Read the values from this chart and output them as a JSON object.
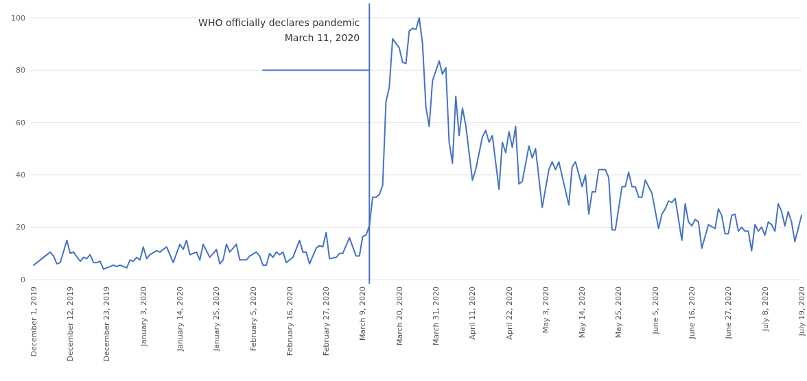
{
  "chart_data": {
    "type": "line",
    "x": [
      "2019-12-01",
      "2019-12-03",
      "2019-12-06",
      "2019-12-07",
      "2019-12-08",
      "2019-12-09",
      "2019-12-11",
      "2019-12-12",
      "2019-12-13",
      "2019-12-15",
      "2019-12-16",
      "2019-12-17",
      "2019-12-18",
      "2019-12-19",
      "2019-12-20",
      "2019-12-21",
      "2019-12-22",
      "2019-12-23",
      "2019-12-25",
      "2019-12-26",
      "2019-12-27",
      "2019-12-29",
      "2019-12-30",
      "2019-12-31",
      "2020-01-01",
      "2020-01-02",
      "2020-01-03",
      "2020-01-04",
      "2020-01-05",
      "2020-01-07",
      "2020-01-08",
      "2020-01-10",
      "2020-01-12",
      "2020-01-14",
      "2020-01-15",
      "2020-01-16",
      "2020-01-17",
      "2020-01-19",
      "2020-01-20",
      "2020-01-21",
      "2020-01-23",
      "2020-01-25",
      "2020-01-26",
      "2020-01-27",
      "2020-01-28",
      "2020-01-29",
      "2020-01-31",
      "2020-02-01",
      "2020-02-03",
      "2020-02-04",
      "2020-02-06",
      "2020-02-07",
      "2020-02-08",
      "2020-02-09",
      "2020-02-10",
      "2020-02-11",
      "2020-02-12",
      "2020-02-13",
      "2020-02-14",
      "2020-02-15",
      "2020-02-17",
      "2020-02-19",
      "2020-02-20",
      "2020-02-21",
      "2020-02-22",
      "2020-02-24",
      "2020-02-25",
      "2020-02-26",
      "2020-02-27",
      "2020-02-28",
      "2020-03-01",
      "2020-03-02",
      "2020-03-03",
      "2020-03-05",
      "2020-03-07",
      "2020-03-08",
      "2020-03-09",
      "2020-03-10",
      "2020-03-11",
      "2020-03-12",
      "2020-03-13",
      "2020-03-14",
      "2020-03-15",
      "2020-03-16",
      "2020-03-17",
      "2020-03-18",
      "2020-03-20",
      "2020-03-21",
      "2020-03-22",
      "2020-03-23",
      "2020-03-24",
      "2020-03-25",
      "2020-03-26",
      "2020-03-27",
      "2020-03-28",
      "2020-03-29",
      "2020-03-30",
      "2020-04-01",
      "2020-04-02",
      "2020-04-03",
      "2020-04-04",
      "2020-04-05",
      "2020-04-06",
      "2020-04-07",
      "2020-04-08",
      "2020-04-09",
      "2020-04-11",
      "2020-04-12",
      "2020-04-14",
      "2020-04-15",
      "2020-04-16",
      "2020-04-17",
      "2020-04-19",
      "2020-04-20",
      "2020-04-21",
      "2020-04-22",
      "2020-04-23",
      "2020-04-24",
      "2020-04-25",
      "2020-04-26",
      "2020-04-28",
      "2020-04-29",
      "2020-04-30",
      "2020-05-02",
      "2020-05-04",
      "2020-05-05",
      "2020-05-06",
      "2020-05-07",
      "2020-05-10",
      "2020-05-11",
      "2020-05-12",
      "2020-05-14",
      "2020-05-15",
      "2020-05-16",
      "2020-05-17",
      "2020-05-18",
      "2020-05-19",
      "2020-05-21",
      "2020-05-22",
      "2020-05-23",
      "2020-05-24",
      "2020-05-26",
      "2020-05-27",
      "2020-05-28",
      "2020-05-29",
      "2020-05-30",
      "2020-05-31",
      "2020-06-01",
      "2020-06-02",
      "2020-06-04",
      "2020-06-06",
      "2020-06-07",
      "2020-06-08",
      "2020-06-09",
      "2020-06-10",
      "2020-06-11",
      "2020-06-12",
      "2020-06-13",
      "2020-06-14",
      "2020-06-15",
      "2020-06-16",
      "2020-06-17",
      "2020-06-18",
      "2020-06-19",
      "2020-06-21",
      "2020-06-23",
      "2020-06-24",
      "2020-06-25",
      "2020-06-26",
      "2020-06-27",
      "2020-06-28",
      "2020-06-29",
      "2020-06-30",
      "2020-07-01",
      "2020-07-02",
      "2020-07-03",
      "2020-07-04",
      "2020-07-05",
      "2020-07-06",
      "2020-07-07",
      "2020-07-08",
      "2020-07-09",
      "2020-07-10",
      "2020-07-11",
      "2020-07-12",
      "2020-07-13",
      "2020-07-14",
      "2020-07-15",
      "2020-07-16",
      "2020-07-17",
      "2020-07-19"
    ],
    "series": [
      {
        "color": "#4472c4",
        "values": [
          5.5,
          7.5,
          10.5,
          9,
          6,
          6.5,
          15,
          10,
          10.5,
          7,
          8.5,
          8,
          9.5,
          6.5,
          6.5,
          7,
          4,
          4.5,
          5.5,
          5,
          5.5,
          4.5,
          7.5,
          7,
          8.5,
          7.5,
          12.5,
          8,
          9.5,
          11,
          10.5,
          12.5,
          6.5,
          13.5,
          11.5,
          15,
          9.5,
          10.5,
          7.5,
          13.5,
          8.5,
          11.5,
          6,
          7.5,
          13.5,
          10.5,
          13.5,
          7.5,
          7.5,
          9,
          10.5,
          9,
          5.5,
          5.5,
          10,
          8.5,
          10.5,
          9.5,
          10.5,
          6.5,
          8.5,
          15,
          10.5,
          10.5,
          6,
          12,
          13,
          12.5,
          18,
          8,
          8.5,
          10,
          10,
          16,
          9,
          9,
          16.5,
          17,
          20.5,
          31.5,
          31.5,
          32.5,
          36,
          68,
          73.5,
          92,
          88.5,
          83,
          82.5,
          95,
          96,
          95.5,
          100,
          90,
          66,
          58.5,
          76,
          83.5,
          78.5,
          81,
          52.5,
          44.5,
          70,
          55,
          65.5,
          59,
          38,
          42,
          54.5,
          57,
          52.5,
          55,
          34.5,
          52.5,
          48.5,
          56.5,
          50.5,
          58.5,
          36.5,
          37.5,
          51,
          46.5,
          50,
          27.5,
          42,
          45,
          42,
          45,
          28.5,
          43,
          45,
          35.5,
          40,
          25,
          33.5,
          33.5,
          42,
          42,
          39,
          19,
          19,
          35.5,
          35.5,
          41,
          35.5,
          35.5,
          31.5,
          31.5,
          38,
          33,
          19.5,
          25,
          27,
          30,
          29.5,
          31,
          23,
          15,
          29,
          22,
          20.5,
          23,
          22,
          12,
          21,
          19.5,
          27,
          24.5,
          17.5,
          17.5,
          24.5,
          25,
          18.5,
          20,
          18.5,
          18.5,
          11,
          21,
          18.5,
          20,
          17,
          22,
          21,
          18.5,
          29,
          26,
          20.5,
          26,
          22,
          14.5,
          24.5
        ]
      }
    ],
    "xlim": [
      "2019-12-01",
      "2020-07-19"
    ],
    "xticks": [
      {
        "value": "2019-12-01",
        "label": "December 1, 2019"
      },
      {
        "value": "2019-12-12",
        "label": "December 12, 2019"
      },
      {
        "value": "2019-12-23",
        "label": "December 23, 2019"
      },
      {
        "value": "2020-01-03",
        "label": "January 3, 2020"
      },
      {
        "value": "2020-01-14",
        "label": "January 14, 2020"
      },
      {
        "value": "2020-01-25",
        "label": "January 25, 2020"
      },
      {
        "value": "2020-02-05",
        "label": "February 5, 2020"
      },
      {
        "value": "2020-02-16",
        "label": "February 16, 2020"
      },
      {
        "value": "2020-02-27",
        "label": "February 27, 2020"
      },
      {
        "value": "2020-03-09",
        "label": "March 9, 2020"
      },
      {
        "value": "2020-03-20",
        "label": "March 20, 2020"
      },
      {
        "value": "2020-03-31",
        "label": "March 31, 2020"
      },
      {
        "value": "2020-04-11",
        "label": "April 11, 2020"
      },
      {
        "value": "2020-04-22",
        "label": "April 22, 2020"
      },
      {
        "value": "2020-05-03",
        "label": "May 3, 2020"
      },
      {
        "value": "2020-05-14",
        "label": "May 14, 2020"
      },
      {
        "value": "2020-05-25",
        "label": "May 25, 2020"
      },
      {
        "value": "2020-06-05",
        "label": "June 5, 2020"
      },
      {
        "value": "2020-06-16",
        "label": "June 16, 2020"
      },
      {
        "value": "2020-06-27",
        "label": "June 27, 2020"
      },
      {
        "value": "2020-07-08",
        "label": "July 8, 2020"
      },
      {
        "value": "2020-07-19",
        "label": "July 19, 2020"
      }
    ],
    "ylim": [
      0,
      100
    ],
    "yticks": [
      0,
      20,
      40,
      60,
      80,
      100
    ],
    "grid": "y",
    "line_style": "solid",
    "ref_lines": [
      {
        "axis": "x",
        "value": "2020-03-11",
        "label": "WHO officially declares pandemic\nMarch 11, 2020",
        "color": "#4472c4"
      }
    ]
  }
}
